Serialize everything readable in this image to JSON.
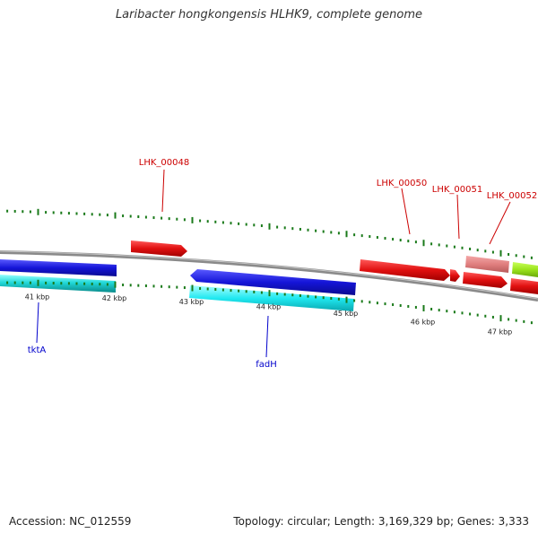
{
  "title": "Laribacter hongkongensis HLHK9, complete genome",
  "footer": {
    "accession": "Accession: NC_012559",
    "summary": "Topology: circular; Length: 3,169,329 bp; Genes: 3,333"
  },
  "colors": {
    "backbone": "#8c8c8c",
    "tick": "#1a7a1a",
    "cds_forward": "#e01010",
    "cds_forward_light": "#e88080",
    "cds_other": "#9be31c",
    "cds_reverse": "#1515d8",
    "cds_reverse_alt": "#16c8c8",
    "label_red": "#cc0000",
    "label_blue": "#0000cc"
  },
  "scale": {
    "labels": [
      "41 kbp",
      "42 kbp",
      "43 kbp",
      "44 kbp",
      "45 kbp",
      "46 kbp",
      "47 kbp"
    ]
  },
  "features": {
    "forward_labels": [
      "LHK_00048",
      "LHK_00050",
      "LHK_00051",
      "LHK_00052"
    ],
    "reverse_labels": [
      "tktA",
      "fadH"
    ]
  }
}
